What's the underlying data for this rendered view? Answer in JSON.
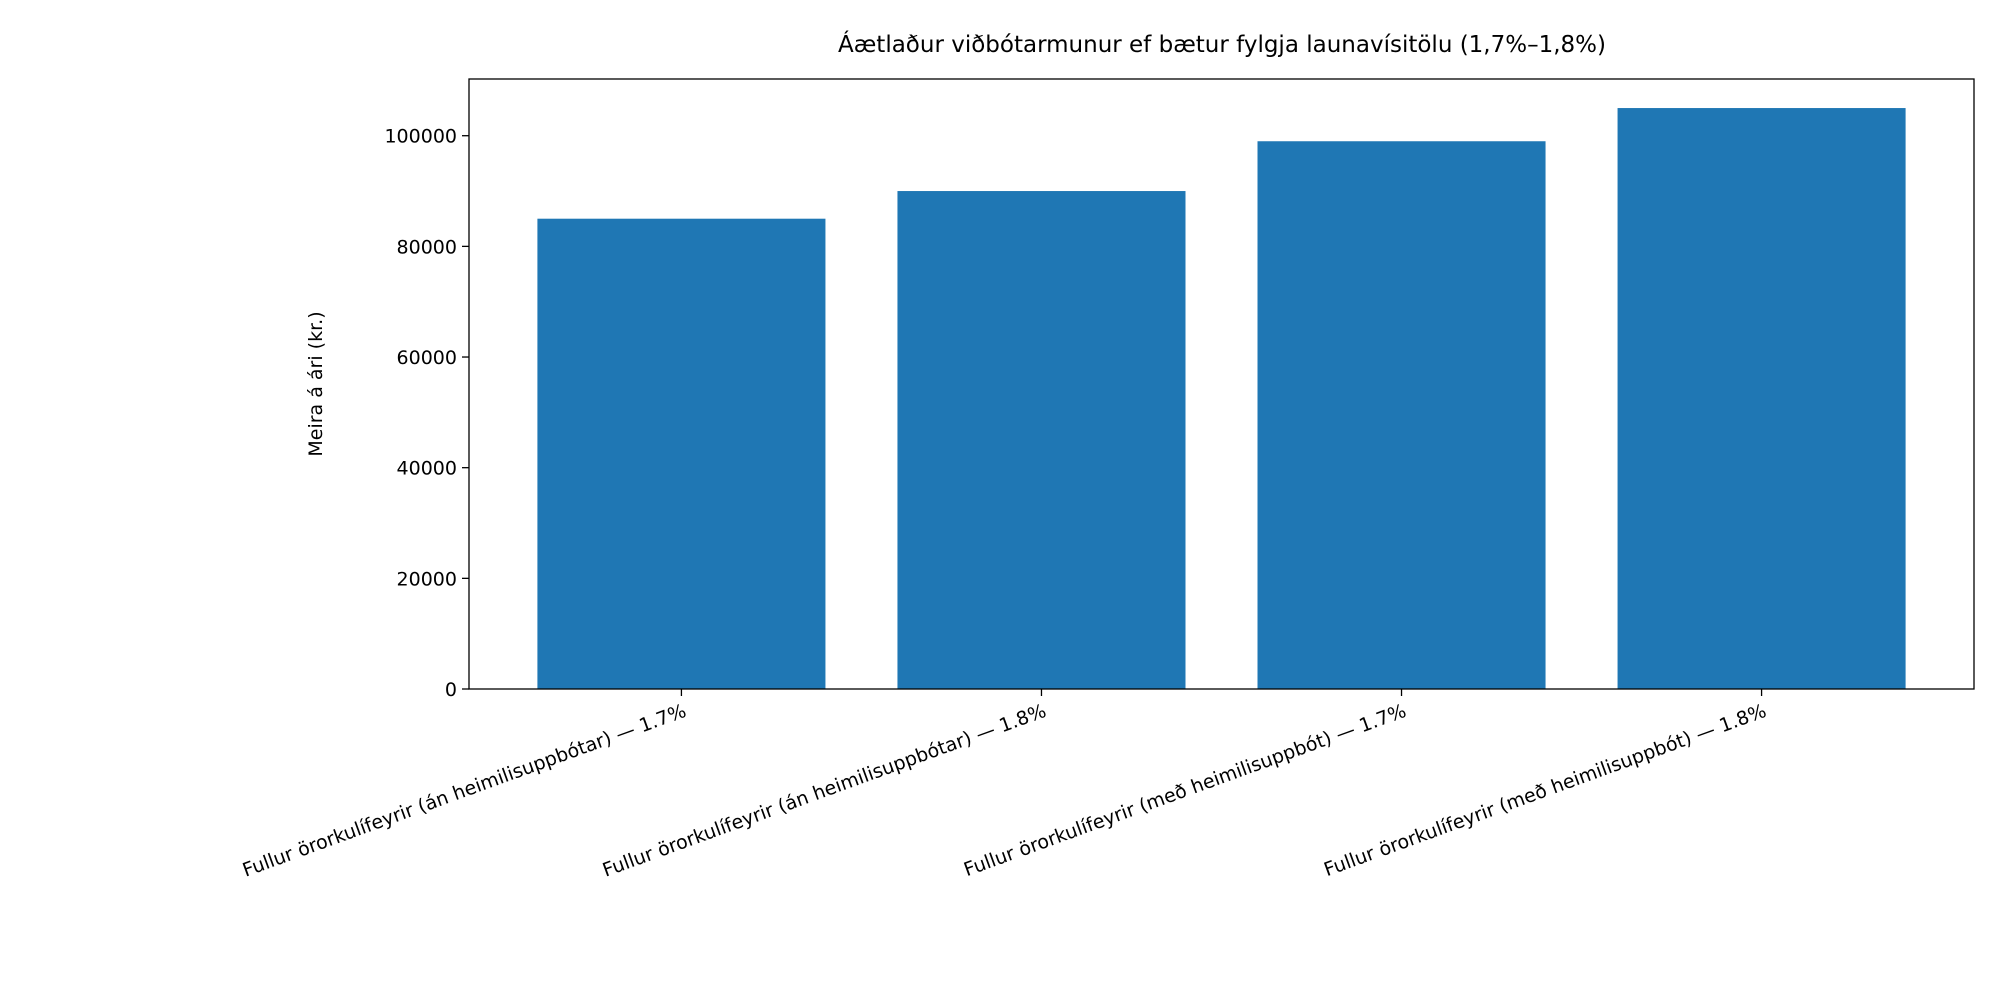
{
  "chart_data": {
    "type": "bar",
    "title": "Áætlaður viðbótarmunur ef bætur fylgja launavísitölu (1,7%–1,8%)",
    "y_label": "Meira á ári (kr.)",
    "categories": [
      "Fullur örorkulífeyrir (án heimilisuppbótar) — 1.7%",
      "Fullur örorkulífeyrir (án heimilisuppbótar) — 1.8%",
      "Fullur örorkulífeyrir (með heimilisuppbót) — 1.7%",
      "Fullur örorkulífeyrir (með heimilisuppbót) — 1.8%"
    ],
    "values": [
      85000,
      90000,
      99000,
      105000
    ],
    "color": "#1f77b4",
    "ylim": [
      0,
      110250
    ],
    "yticks": [
      0,
      20000,
      40000,
      60000,
      80000,
      100000
    ],
    "grid": false
  }
}
